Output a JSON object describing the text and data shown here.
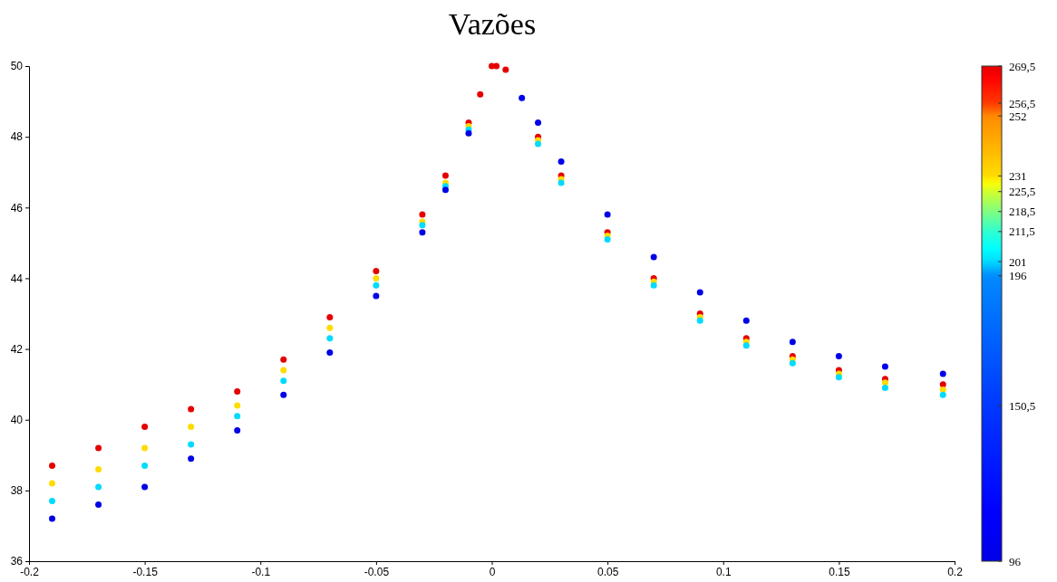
{
  "chart_data": {
    "type": "scatter",
    "title": "Vazões",
    "marker": "circle",
    "grid": false,
    "xlim": [
      -0.2,
      0.2
    ],
    "xticks": [
      -0.2,
      -0.15,
      -0.1,
      -0.05,
      0,
      0.05,
      0.1,
      0.15,
      0.2
    ],
    "ylim": [
      36,
      50
    ],
    "yticks": [
      36,
      38,
      40,
      42,
      44,
      46,
      48,
      50
    ],
    "clim": [
      96,
      269.5
    ],
    "cticks": [
      96,
      {
        "value": 150.5,
        "label": "150,5"
      },
      196,
      201,
      {
        "value": 211.5,
        "label": "211,5"
      },
      {
        "value": 218.5,
        "label": "218,5"
      },
      {
        "value": 225.5,
        "label": "225,5"
      },
      231,
      252,
      {
        "value": 256.5,
        "label": "256,5"
      },
      {
        "value": 269.5,
        "label": "269,5"
      }
    ],
    "series": [
      {
        "x": [
          -0.19,
          -0.17,
          -0.15,
          -0.13,
          -0.11,
          -0.09,
          -0.07,
          -0.05,
          -0.03,
          -0.02,
          -0.01,
          -0.005,
          0,
          0.002,
          0.006,
          0.02,
          0.03,
          0.05,
          0.07,
          0.09,
          0.11,
          0.13,
          0.15,
          0.17,
          0.195
        ],
        "values": [
          38.7,
          39.2,
          39.8,
          40.3,
          40.8,
          41.7,
          42.9,
          44.2,
          45.8,
          46.9,
          48.4,
          49.2,
          50,
          50,
          49.9,
          48.0,
          46.9,
          45.3,
          44.0,
          43.0,
          42.3,
          41.8,
          41.4,
          41.15,
          41.0
        ],
        "cvalues": [
          269.5,
          269.5,
          269.5,
          269.5,
          269.5,
          269.5,
          269.5,
          269.5,
          269.5,
          269.5,
          269.5,
          269.5,
          269.5,
          269.5,
          269.5,
          269.5,
          269.5,
          269.5,
          269.5,
          269.5,
          269.5,
          269.5,
          269.5,
          269.5,
          269.5
        ]
      },
      {
        "x": [
          -0.19,
          -0.17,
          -0.15,
          -0.13,
          -0.11,
          -0.09,
          -0.07,
          -0.05,
          -0.03,
          -0.02,
          -0.01,
          0.02,
          0.03,
          0.05,
          0.07,
          0.09,
          0.11,
          0.13,
          0.15,
          0.17,
          0.195
        ],
        "values": [
          38.2,
          38.6,
          39.2,
          39.8,
          40.4,
          41.4,
          42.6,
          44.0,
          45.6,
          46.7,
          48.3,
          47.9,
          46.8,
          45.2,
          43.9,
          42.9,
          42.2,
          41.7,
          41.3,
          41.05,
          40.85
        ],
        "cvalues": [
          231,
          231,
          231,
          231,
          231,
          231,
          231,
          231,
          231,
          231,
          231,
          231,
          231,
          231,
          231,
          231,
          231,
          231,
          231,
          231,
          231
        ]
      },
      {
        "x": [
          -0.19,
          -0.17,
          -0.15,
          -0.13,
          -0.11,
          -0.09,
          -0.07,
          -0.05,
          -0.03,
          -0.02,
          -0.01,
          0.02,
          0.03,
          0.05,
          0.07,
          0.09,
          0.11,
          0.13,
          0.15,
          0.17,
          0.195
        ],
        "values": [
          37.7,
          38.1,
          38.7,
          39.3,
          40.1,
          41.1,
          42.3,
          43.8,
          45.5,
          46.6,
          48.2,
          47.8,
          46.7,
          45.1,
          43.8,
          42.8,
          42.1,
          41.6,
          41.2,
          40.9,
          40.7
        ],
        "cvalues": [
          201,
          201,
          201,
          201,
          201,
          201,
          201,
          201,
          201,
          201,
          201,
          201,
          201,
          201,
          201,
          201,
          201,
          201,
          201,
          201,
          201
        ]
      },
      {
        "x": [
          -0.19,
          -0.17,
          -0.15,
          -0.13,
          -0.11,
          -0.09,
          -0.07,
          -0.05,
          -0.03,
          -0.02,
          -0.01,
          0.013,
          0.02,
          0.03,
          0.05,
          0.07,
          0.09,
          0.11,
          0.13,
          0.15,
          0.17,
          0.195
        ],
        "values": [
          37.2,
          37.6,
          38.1,
          38.9,
          39.7,
          40.7,
          41.9,
          43.5,
          45.3,
          46.5,
          48.1,
          49.1,
          48.4,
          47.3,
          45.8,
          44.6,
          43.6,
          42.8,
          42.2,
          41.8,
          41.5,
          41.3
        ],
        "cvalues": [
          96,
          96,
          96,
          96,
          96,
          96,
          96,
          96,
          96,
          96,
          96,
          96,
          96,
          96,
          96,
          96,
          96,
          96,
          96,
          96,
          96,
          96
        ]
      }
    ]
  }
}
